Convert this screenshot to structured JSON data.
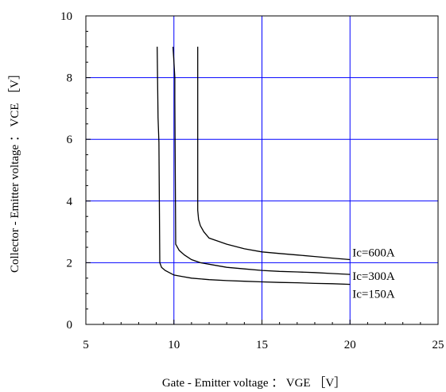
{
  "chart_data": {
    "type": "line",
    "xlabel": "Gate - Emitter voltage ： VGE ［V］",
    "ylabel": "Collector - Emitter voltage ： VCE ［V］",
    "xlim": [
      5,
      25
    ],
    "ylim": [
      0,
      10
    ],
    "xticks": [
      "5",
      "10",
      "15",
      "20",
      "25"
    ],
    "yticks": [
      "0",
      "2",
      "4",
      "6",
      "8",
      "10"
    ],
    "grid": true,
    "grid_color": "#0000ff",
    "line_color": "#000000",
    "series": [
      {
        "name": "Ic=600A",
        "x": [
          11.35,
          11.35,
          11.35,
          11.4,
          11.5,
          11.7,
          12.0,
          12.5,
          13.0,
          14.0,
          15.0,
          16.0,
          17.0,
          18.0,
          19.0,
          20.0
        ],
        "y": [
          9.0,
          6.0,
          3.7,
          3.4,
          3.2,
          3.0,
          2.8,
          2.7,
          2.6,
          2.45,
          2.35,
          2.3,
          2.25,
          2.2,
          2.15,
          2.1
        ]
      },
      {
        "name": "Ic=300A",
        "x": [
          9.95,
          10.0,
          10.05,
          10.05,
          10.1,
          10.3,
          10.6,
          11.0,
          11.5,
          12.0,
          13.0,
          14.0,
          15.0,
          16.0,
          17.0,
          18.0,
          19.0,
          20.0
        ],
        "y": [
          9.0,
          8.5,
          8.0,
          7.3,
          2.6,
          2.4,
          2.25,
          2.1,
          2.0,
          1.95,
          1.85,
          1.8,
          1.75,
          1.72,
          1.7,
          1.68,
          1.65,
          1.62
        ]
      },
      {
        "name": "Ic=150A",
        "x": [
          9.05,
          9.1,
          9.15,
          9.2,
          9.3,
          9.5,
          10.0,
          10.5,
          11.0,
          12.0,
          13.0,
          14.0,
          15.0,
          16.0,
          17.0,
          18.0,
          19.0,
          20.0
        ],
        "y": [
          9.0,
          6.7,
          5.9,
          2.0,
          1.85,
          1.75,
          1.6,
          1.55,
          1.5,
          1.45,
          1.42,
          1.4,
          1.38,
          1.36,
          1.35,
          1.33,
          1.32,
          1.3
        ]
      }
    ]
  }
}
